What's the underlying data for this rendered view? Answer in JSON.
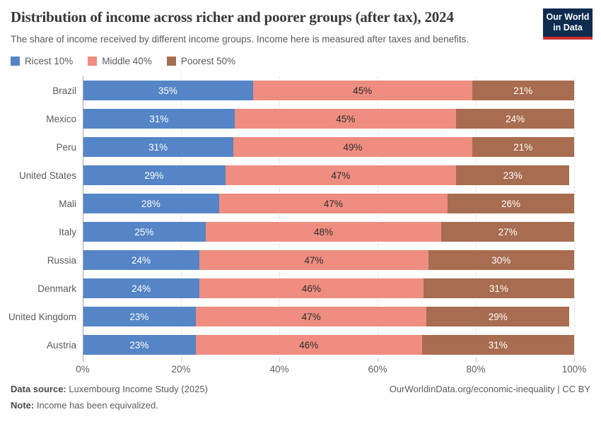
{
  "header": {
    "title": "Distribution of income across richer and poorer groups (after tax), 2024",
    "subtitle": "The share of income received by different income groups. Income here is measured after taxes and benefits.",
    "logo": {
      "line1": "Our World",
      "line2": "in Data",
      "bg_color": "#0d2c4e",
      "stripe_color": "#c9302b"
    }
  },
  "legend": [
    {
      "label": "Ricest 10%",
      "color": "#5585c6"
    },
    {
      "label": "Middle 40%",
      "color": "#ee8d80"
    },
    {
      "label": "Poorest 50%",
      "color": "#a86c50"
    }
  ],
  "chart_data": {
    "type": "bar",
    "orientation": "horizontal",
    "stacked": true,
    "title": "Distribution of income across richer and poorer groups (after tax), 2024",
    "categories": [
      "Brazil",
      "Mexico",
      "Peru",
      "United States",
      "Mali",
      "Italy",
      "Russia",
      "Denmark",
      "United Kingdom",
      "Austria"
    ],
    "series": [
      {
        "name": "Ricest 10%",
        "color": "#5585c6",
        "label_color": "#ffffff",
        "values": [
          35,
          31,
          31,
          29,
          28,
          25,
          24,
          24,
          23,
          23
        ]
      },
      {
        "name": "Middle 40%",
        "color": "#ee8d80",
        "label_color": "#2d2d2d",
        "values": [
          45,
          45,
          49,
          47,
          47,
          48,
          47,
          46,
          47,
          46
        ]
      },
      {
        "name": "Poorest 50%",
        "color": "#a86c50",
        "label_color": "#ffffff",
        "values": [
          21,
          24,
          21,
          23,
          26,
          27,
          30,
          31,
          29,
          31
        ]
      }
    ],
    "value_suffix": "%",
    "xlim": [
      0,
      100
    ],
    "grid_ticks": [
      0,
      20,
      40,
      60,
      80,
      100
    ],
    "x_ticks": [
      "0%",
      "20%",
      "40%",
      "60%",
      "80%",
      "100%"
    ],
    "grid": "dashed-vertical",
    "legend_position": "top-left"
  },
  "footer": {
    "source_label": "Data source:",
    "source_text": "Luxembourg Income Study (2025)",
    "note_label": "Note:",
    "note_text": "Income has been equivalized.",
    "right_text": "OurWorldinData.org/economic-inequality | CC BY"
  }
}
